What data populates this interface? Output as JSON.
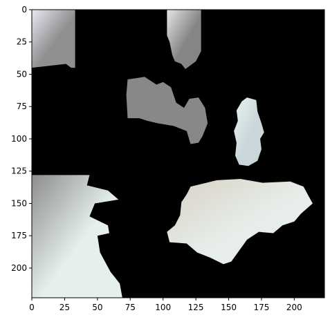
{
  "figure": {
    "xlim": [
      0,
      223
    ],
    "ylim": [
      223,
      0
    ],
    "x_ticks": [
      {
        "value": 0,
        "label": "0"
      },
      {
        "value": 25,
        "label": "25"
      },
      {
        "value": 50,
        "label": "50"
      },
      {
        "value": 75,
        "label": "75"
      },
      {
        "value": 100,
        "label": "100"
      },
      {
        "value": 125,
        "label": "125"
      },
      {
        "value": 150,
        "label": "150"
      },
      {
        "value": 175,
        "label": "175"
      },
      {
        "value": 200,
        "label": "200"
      }
    ],
    "y_ticks": [
      {
        "value": 0,
        "label": "0"
      },
      {
        "value": 25,
        "label": "25"
      },
      {
        "value": 50,
        "label": "50"
      },
      {
        "value": 75,
        "label": "75"
      },
      {
        "value": 100,
        "label": "100"
      },
      {
        "value": 125,
        "label": "125"
      },
      {
        "value": 150,
        "label": "150"
      },
      {
        "value": 175,
        "label": "175"
      },
      {
        "value": 200,
        "label": "200"
      }
    ],
    "background_color": "#000000",
    "regions": [
      {
        "name": "top-left-patch",
        "fill": "#8f8f8f",
        "highlight": "#e8e8f4",
        "outline": [
          [
            0,
            0
          ],
          [
            33,
            0
          ],
          [
            33,
            45
          ],
          [
            30,
            45
          ],
          [
            26,
            42
          ],
          [
            0,
            45
          ]
        ]
      },
      {
        "name": "top-middle-patch",
        "fill": "#858585",
        "highlight": "#e6e6e6",
        "outline": [
          [
            103,
            0
          ],
          [
            129,
            0
          ],
          [
            129,
            32
          ],
          [
            125,
            40
          ],
          [
            117,
            46
          ],
          [
            114,
            42
          ],
          [
            109,
            40
          ],
          [
            107,
            35
          ],
          [
            105,
            25
          ],
          [
            103,
            20
          ]
        ]
      },
      {
        "name": "center-gray-blob",
        "fill": "#888888",
        "outline": [
          [
            73,
            54
          ],
          [
            86,
            52
          ],
          [
            95,
            58
          ],
          [
            100,
            56
          ],
          [
            106,
            60
          ],
          [
            110,
            72
          ],
          [
            116,
            76
          ],
          [
            120,
            69
          ],
          [
            127,
            68
          ],
          [
            132,
            76
          ],
          [
            134,
            88
          ],
          [
            130,
            98
          ],
          [
            127,
            103
          ],
          [
            121,
            104
          ],
          [
            118,
            94
          ],
          [
            108,
            90
          ],
          [
            96,
            88
          ],
          [
            88,
            86
          ],
          [
            82,
            84
          ],
          [
            73,
            84
          ],
          [
            72,
            66
          ]
        ]
      },
      {
        "name": "right-upper-blob",
        "fill": "#c9d7da",
        "highlight": "#e9f3f1",
        "outline": [
          [
            160,
            71
          ],
          [
            164,
            68
          ],
          [
            171,
            70
          ],
          [
            172,
            79
          ],
          [
            175,
            88
          ],
          [
            177,
            95
          ],
          [
            174,
            100
          ],
          [
            175,
            108
          ],
          [
            172,
            117
          ],
          [
            165,
            121
          ],
          [
            158,
            120
          ],
          [
            155,
            113
          ],
          [
            156,
            103
          ],
          [
            154,
            94
          ],
          [
            157,
            86
          ],
          [
            156,
            78
          ]
        ]
      },
      {
        "name": "bottom-left-patch",
        "fill": "#e5f0ee",
        "highlight": "#8d8d8d",
        "outline": [
          [
            0,
            128
          ],
          [
            44,
            128
          ],
          [
            42,
            136
          ],
          [
            58,
            140
          ],
          [
            66,
            147
          ],
          [
            48,
            150
          ],
          [
            44,
            160
          ],
          [
            58,
            167
          ],
          [
            59,
            173
          ],
          [
            50,
            175
          ],
          [
            52,
            188
          ],
          [
            60,
            203
          ],
          [
            67,
            212
          ],
          [
            69,
            223
          ],
          [
            0,
            223
          ]
        ]
      },
      {
        "name": "bottom-right-blob",
        "fill": "#e7eeea",
        "highlight": "#d7d0c4",
        "outline": [
          [
            121,
            137
          ],
          [
            141,
            132
          ],
          [
            159,
            131
          ],
          [
            176,
            134
          ],
          [
            197,
            133
          ],
          [
            207,
            137
          ],
          [
            214,
            150
          ],
          [
            205,
            158
          ],
          [
            200,
            164
          ],
          [
            191,
            167
          ],
          [
            184,
            173
          ],
          [
            173,
            172
          ],
          [
            164,
            178
          ],
          [
            152,
            195
          ],
          [
            146,
            197
          ],
          [
            136,
            192
          ],
          [
            126,
            188
          ],
          [
            118,
            181
          ],
          [
            105,
            180
          ],
          [
            103,
            172
          ],
          [
            109,
            167
          ],
          [
            113,
            159
          ],
          [
            114,
            149
          ],
          [
            118,
            143
          ]
        ]
      }
    ]
  }
}
